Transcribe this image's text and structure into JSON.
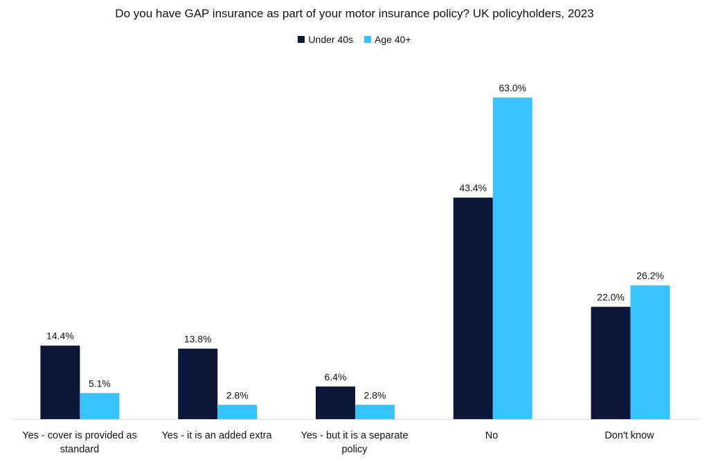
{
  "chart_data": {
    "type": "bar",
    "title": "Do you have GAP insurance as part of your motor insurance policy? UK policyholders, 2023",
    "categories": [
      "Yes - cover is provided as standard",
      "Yes - it is an added extra",
      "Yes - but it is a separate policy",
      "No",
      "Don't know"
    ],
    "series": [
      {
        "name": "Under 40s",
        "color": "#0b1639",
        "values": [
          14.4,
          13.8,
          6.4,
          43.4,
          22.0
        ]
      },
      {
        "name": "Age 40+",
        "color": "#38c3fa",
        "values": [
          5.1,
          2.8,
          2.8,
          63.0,
          26.2
        ]
      }
    ],
    "data_labels": [
      [
        "14.4%",
        "13.8%",
        "6.4%",
        "43.4%",
        "22.0%"
      ],
      [
        "5.1%",
        "2.8%",
        "2.8%",
        "63.0%",
        "26.2%"
      ]
    ],
    "ylim": [
      0,
      63.0
    ],
    "grid": false,
    "legend_position": "top-center",
    "xlabel": "",
    "ylabel": ""
  }
}
